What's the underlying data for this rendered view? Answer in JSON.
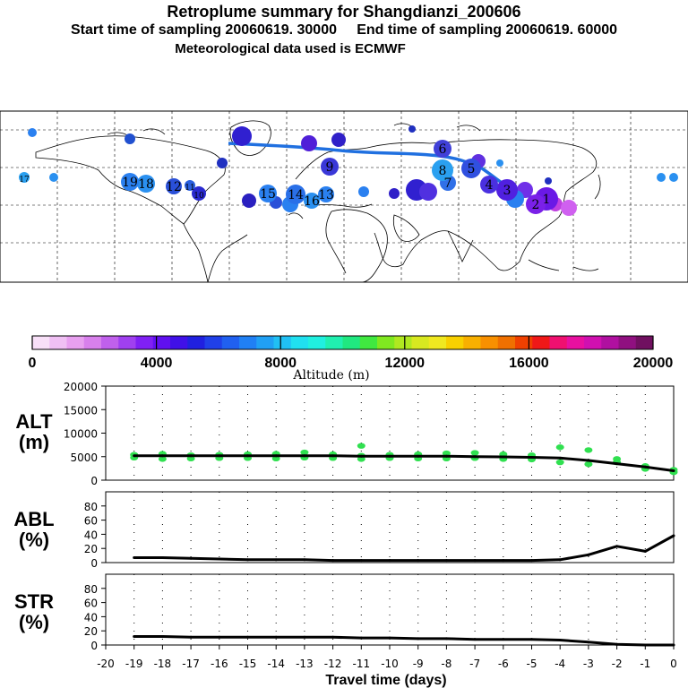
{
  "header": {
    "title": "Retroplume summary for Shangdianzi_200606",
    "start_label": "Start time of sampling 20060619. 30000",
    "end_label": "End time of sampling 20060619. 60000",
    "met_label": "Meteorological data used is ECMWF"
  },
  "map": {
    "day_labels": [
      {
        "n": "1",
        "color": "#6a19e6"
      },
      {
        "n": "2",
        "color": "#7a20e8"
      },
      {
        "n": "3",
        "color": "#5020e0"
      },
      {
        "n": "4",
        "color": "#4a30e0"
      },
      {
        "n": "5",
        "color": "#3050e0"
      },
      {
        "n": "6",
        "color": "#4040d8"
      },
      {
        "n": "7",
        "color": "#3070e8"
      },
      {
        "n": "8",
        "color": "#2aa0f0"
      },
      {
        "n": "9",
        "color": "#3a38d8"
      },
      {
        "n": "10",
        "color": "#2a2ad0"
      },
      {
        "n": "11",
        "color": "#2a60e0"
      },
      {
        "n": "12",
        "color": "#2a50d8"
      },
      {
        "n": "13",
        "color": "#2a80f0"
      },
      {
        "n": "14",
        "color": "#2a70e8"
      },
      {
        "n": "15",
        "color": "#2a80f0"
      },
      {
        "n": "16",
        "color": "#2a90f0"
      },
      {
        "n": "17",
        "color": "#2aa0f0"
      },
      {
        "n": "18",
        "color": "#2a90f0"
      },
      {
        "n": "19",
        "color": "#2a80f0"
      }
    ]
  },
  "colorbar": {
    "label": "Altitude (m)",
    "tick_labels": [
      "0",
      "4000",
      "8000",
      "12000",
      "16000",
      "20000"
    ],
    "min": 0,
    "max": 20000,
    "colors": [
      "#f8e0f8",
      "#f0c0f4",
      "#e8a0f0",
      "#d880ec",
      "#c060ec",
      "#a040f0",
      "#8020f4",
      "#6010f0",
      "#4010e8",
      "#2020e0",
      "#2040e8",
      "#2060f0",
      "#2080f4",
      "#20a0f4",
      "#20c0f4",
      "#20e0f0",
      "#20f0e0",
      "#20f0b0",
      "#20e880",
      "#40e840",
      "#80e820",
      "#b0e820",
      "#d8e820",
      "#f0e820",
      "#f8d000",
      "#f8b000",
      "#f89000",
      "#f07000",
      "#f04000",
      "#f01818",
      "#f01070",
      "#e810a0",
      "#d010b0",
      "#b010a0",
      "#901080",
      "#701060"
    ]
  },
  "chart_data": [
    {
      "type": "line",
      "panel": "ALT",
      "ylabel_line1": "ALT",
      "ylabel_line2": "(m)",
      "ylim": [
        0,
        20000
      ],
      "yticks": [
        "0",
        "5000",
        "10000",
        "15000",
        "20000"
      ],
      "x": [
        -19,
        -18,
        -17,
        -16,
        -15,
        -14,
        -13,
        -12,
        -11,
        -10,
        -9,
        -8,
        -7,
        -6,
        -5,
        -4,
        -3,
        -2,
        -1,
        0
      ],
      "values": [
        5200,
        5200,
        5200,
        5200,
        5200,
        5200,
        5200,
        5200,
        5100,
        5100,
        5100,
        5100,
        5000,
        4950,
        4850,
        4700,
        4200,
        3500,
        2800,
        2000
      ],
      "scatter_color": "#30e050",
      "scatter": [
        [
          -19,
          5400
        ],
        [
          -19,
          4800
        ],
        [
          -18,
          5600
        ],
        [
          -18,
          4500
        ],
        [
          -17,
          5300
        ],
        [
          -17,
          4600
        ],
        [
          -16,
          5400
        ],
        [
          -16,
          4700
        ],
        [
          -15,
          5500
        ],
        [
          -15,
          4700
        ],
        [
          -14,
          5600
        ],
        [
          -14,
          4600
        ],
        [
          -13,
          5900
        ],
        [
          -13,
          4800
        ],
        [
          -12,
          5500
        ],
        [
          -12,
          4700
        ],
        [
          -11,
          5200
        ],
        [
          -11,
          4500
        ],
        [
          -11,
          7300
        ],
        [
          -10,
          5400
        ],
        [
          -10,
          4700
        ],
        [
          -9,
          5500
        ],
        [
          -9,
          4600
        ],
        [
          -8,
          5700
        ],
        [
          -8,
          4600
        ],
        [
          -7,
          5800
        ],
        [
          -7,
          4700
        ],
        [
          -6,
          5500
        ],
        [
          -6,
          4500
        ],
        [
          -5,
          5300
        ],
        [
          -5,
          4400
        ],
        [
          -4,
          7000
        ],
        [
          -4,
          3800
        ],
        [
          -3,
          6400
        ],
        [
          -3,
          3400
        ],
        [
          -2,
          4500
        ],
        [
          -2,
          3800
        ],
        [
          -1,
          3000
        ],
        [
          -1,
          2400
        ],
        [
          0,
          2200
        ],
        [
          0,
          1700
        ]
      ]
    },
    {
      "type": "line",
      "panel": "ABL",
      "ylabel_line1": "ABL",
      "ylabel_line2": "(%)",
      "ylim": [
        0,
        100
      ],
      "yticks": [
        "0",
        "20",
        "40",
        "60",
        "80"
      ],
      "x": [
        -19,
        -18,
        -17,
        -16,
        -15,
        -14,
        -13,
        -12,
        -11,
        -10,
        -9,
        -8,
        -7,
        -6,
        -5,
        -4,
        -3,
        -2,
        -1,
        0
      ],
      "values": [
        7,
        7,
        6,
        5,
        4,
        4,
        4,
        3,
        3,
        3,
        3,
        3,
        3,
        3,
        3,
        4,
        11,
        23,
        16,
        38
      ]
    },
    {
      "type": "line",
      "panel": "STR",
      "ylabel_line1": "STR",
      "ylabel_line2": "(%)",
      "ylim": [
        0,
        100
      ],
      "yticks": [
        "0",
        "20",
        "40",
        "60",
        "80"
      ],
      "xlabel": "Travel time (days)",
      "x": [
        -19,
        -18,
        -17,
        -16,
        -15,
        -14,
        -13,
        -12,
        -11,
        -10,
        -9,
        -8,
        -7,
        -6,
        -5,
        -4,
        -3,
        -2,
        -1,
        0
      ],
      "values": [
        12,
        12,
        11,
        11,
        11,
        11,
        11,
        11,
        10,
        10,
        9,
        9,
        8,
        8,
        8,
        7,
        4,
        1,
        0,
        0
      ],
      "xlim": [
        -20,
        0
      ],
      "xticks": [
        "-20",
        "-19",
        "-18",
        "-17",
        "-16",
        "-15",
        "-14",
        "-13",
        "-12",
        "-11",
        "-10",
        "-9",
        "-8",
        "-7",
        "-6",
        "-5",
        "-4",
        "-3",
        "-2",
        "-1",
        "0"
      ]
    }
  ]
}
